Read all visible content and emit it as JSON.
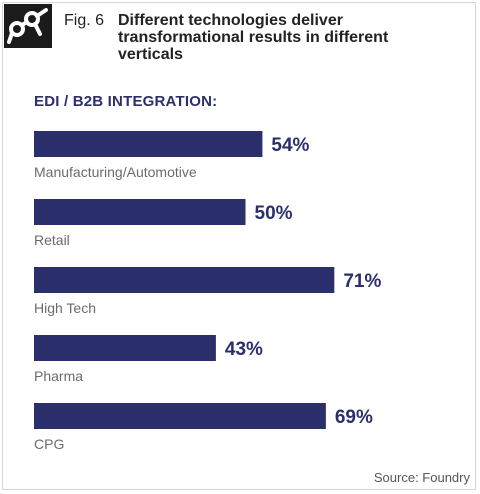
{
  "header": {
    "fig_label": "Fig. 6",
    "title": "Different technologies deliver transformational results in different verticals",
    "section": "EDI / B2B INTEGRATION:"
  },
  "source": "Source: Foundry",
  "colors": {
    "bar": "#2b2f6b",
    "value_text": "#2b2f6b",
    "category_text": "#6b6b6b"
  },
  "chart_data": {
    "type": "bar",
    "orientation": "horizontal",
    "title": "",
    "categories": [
      "Manufacturing/Automotive",
      "Retail",
      "High Tech",
      "Pharma",
      "CPG"
    ],
    "values": [
      54,
      50,
      71,
      43,
      69
    ],
    "value_labels": [
      "54%",
      "50%",
      "71%",
      "43%",
      "69%"
    ],
    "unit": "%",
    "xlim": [
      0,
      100
    ],
    "grid": false,
    "legend": "none"
  }
}
